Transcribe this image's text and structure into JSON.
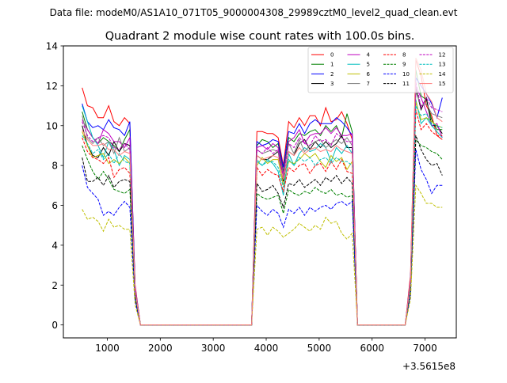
{
  "chart_data": {
    "type": "line",
    "suptitle": "Data file: modeM0/AS1A10_071T05_9000004308_29989cztM0_level2_quad_clean.evt",
    "title": "Quadrant 2 module wise count rates with 100.0s bins.",
    "xlabel": "",
    "ylabel": "",
    "x_offset_label": "+3.5615e8",
    "xlim": [
      170,
      7590
    ],
    "ylim": [
      -0.65,
      14
    ],
    "xticks": [
      1000,
      2000,
      3000,
      4000,
      5000,
      6000,
      7000
    ],
    "yticks": [
      0,
      2,
      4,
      6,
      8,
      10,
      12,
      14
    ],
    "grid": false,
    "legend": {
      "placement": "top-right",
      "columns": 4
    },
    "x": [
      525,
      625,
      725,
      825,
      925,
      1025,
      1125,
      1225,
      1325,
      1425,
      1525,
      1625,
      3725,
      3825,
      3925,
      4025,
      4125,
      4225,
      4325,
      4425,
      4525,
      4625,
      4725,
      4825,
      4925,
      5025,
      5125,
      5225,
      5325,
      5425,
      5525,
      5625,
      5725,
      6625,
      6725,
      6825,
      6925,
      7025,
      7125,
      7225,
      7325
    ],
    "series": [
      {
        "name": "0",
        "color": "#ff0000",
        "dash": "solid",
        "values": [
          11.9,
          11.0,
          10.9,
          10.4,
          10.4,
          11.0,
          10.2,
          10.0,
          10.4,
          10.1,
          2.0,
          0,
          0,
          9.7,
          9.7,
          9.6,
          9.6,
          9.4,
          8.0,
          10.2,
          9.9,
          10.4,
          10.0,
          10.5,
          10.5,
          10.0,
          10.9,
          10.2,
          10.3,
          10.7,
          10.1,
          9.3,
          0,
          0,
          2.5,
          13.3,
          12.5,
          11.0,
          10.5,
          9.5,
          9.3
        ]
      },
      {
        "name": "1",
        "color": "#008000",
        "dash": "solid",
        "values": [
          10.7,
          9.8,
          9.4,
          9.1,
          9.4,
          9.2,
          9.0,
          8.7,
          9.3,
          9.8,
          1.8,
          0,
          0,
          9.0,
          9.3,
          9.2,
          8.9,
          9.1,
          7.7,
          9.4,
          9.2,
          9.6,
          9.5,
          9.7,
          9.8,
          9.5,
          10.0,
          9.7,
          10.0,
          9.4,
          10.6,
          9.7,
          0,
          0,
          2.2,
          12.8,
          11.5,
          11.3,
          10.3,
          9.8,
          9.8
        ]
      },
      {
        "name": "2",
        "color": "#0000ff",
        "dash": "solid",
        "values": [
          11.1,
          10.2,
          9.9,
          10.0,
          9.8,
          10.3,
          9.9,
          9.8,
          9.5,
          10.2,
          1.9,
          0,
          0,
          9.2,
          9.0,
          9.1,
          9.3,
          9.2,
          7.9,
          9.7,
          9.6,
          10.1,
          9.6,
          10.1,
          10.3,
          10.1,
          10.1,
          10.1,
          10.4,
          10.2,
          9.9,
          9.5,
          0,
          0,
          2.3,
          12.4,
          12.0,
          11.6,
          11.1,
          10.4,
          11.4
        ]
      },
      {
        "name": "3",
        "color": "#000000",
        "dash": "solid",
        "values": [
          10.0,
          9.0,
          8.5,
          8.4,
          8.9,
          8.5,
          9.2,
          8.7,
          9.1,
          9.0,
          1.8,
          0,
          0,
          8.5,
          8.3,
          8.3,
          8.5,
          8.7,
          7.2,
          8.7,
          8.5,
          9.1,
          9.3,
          8.8,
          9.2,
          8.9,
          9.2,
          8.9,
          9.1,
          9.5,
          8.9,
          8.9,
          0,
          0,
          2.0,
          11.9,
          10.8,
          11.4,
          10.0,
          10.0,
          9.6
        ]
      },
      {
        "name": "4",
        "color": "#bf00bf",
        "dash": "solid",
        "values": [
          10.3,
          9.8,
          9.4,
          9.1,
          9.8,
          9.6,
          9.2,
          9.2,
          8.9,
          9.4,
          1.9,
          0,
          0,
          8.9,
          9.0,
          8.8,
          9.1,
          8.9,
          7.6,
          9.2,
          9.4,
          9.8,
          9.1,
          9.5,
          9.6,
          9.6,
          9.9,
          9.6,
          9.9,
          9.5,
          9.5,
          9.6,
          0,
          0,
          2.2,
          12.0,
          11.4,
          10.7,
          10.0,
          10.1,
          9.4
        ]
      },
      {
        "name": "5",
        "color": "#00bfbf",
        "dash": "solid",
        "values": [
          11.0,
          10.2,
          9.4,
          9.0,
          8.4,
          9.2,
          8.8,
          8.0,
          8.5,
          8.3,
          1.7,
          0,
          0,
          8.2,
          8.0,
          8.3,
          8.1,
          7.7,
          6.5,
          8.6,
          8.0,
          8.6,
          8.9,
          8.7,
          8.8,
          9.1,
          8.9,
          8.2,
          8.9,
          8.6,
          9.0,
          8.6,
          0,
          0,
          2.1,
          11.3,
          10.1,
          10.4,
          10.0,
          9.7,
          9.4
        ]
      },
      {
        "name": "6",
        "color": "#bfbf00",
        "dash": "solid",
        "values": [
          9.7,
          9.0,
          8.4,
          8.5,
          8.6,
          8.1,
          8.3,
          8.1,
          8.4,
          8.1,
          1.7,
          0,
          0,
          8.0,
          8.4,
          8.1,
          8.3,
          8.3,
          7.0,
          8.2,
          8.1,
          8.3,
          8.6,
          8.4,
          8.6,
          8.2,
          7.9,
          8.5,
          8.2,
          8.4,
          7.8,
          8.2,
          0,
          0,
          2.0,
          11.2,
          10.3,
          10.4,
          10.2,
          10.0,
          9.9
        ]
      },
      {
        "name": "7",
        "color": "#808080",
        "dash": "solid",
        "values": [
          10.5,
          9.4,
          9.1,
          9.4,
          9.0,
          9.2,
          8.6,
          9.4,
          8.7,
          8.9,
          1.8,
          0,
          0,
          8.8,
          8.6,
          8.7,
          8.8,
          8.7,
          7.5,
          9.1,
          8.6,
          9.3,
          8.7,
          9.0,
          9.2,
          9.3,
          8.9,
          9.1,
          9.3,
          9.1,
          9.4,
          9.0,
          0,
          0,
          2.1,
          11.7,
          11.0,
          11.1,
          10.6,
          10.5,
          10.4
        ]
      },
      {
        "name": "8",
        "color": "#ff0000",
        "dash": "dashed",
        "values": [
          9.4,
          8.7,
          8.4,
          8.3,
          8.1,
          8.4,
          7.4,
          7.8,
          7.9,
          7.6,
          1.6,
          0,
          0,
          7.9,
          7.5,
          7.8,
          7.6,
          7.5,
          6.7,
          7.9,
          7.7,
          8.0,
          8.1,
          7.6,
          8.0,
          8.1,
          7.7,
          8.2,
          7.8,
          8.3,
          7.7,
          7.6,
          0,
          0,
          2.0,
          10.8,
          9.8,
          10.1,
          9.7,
          9.5,
          9.5
        ]
      },
      {
        "name": "9",
        "color": "#008000",
        "dash": "dashed",
        "values": [
          9.0,
          8.3,
          7.7,
          7.3,
          7.7,
          7.3,
          6.8,
          6.7,
          6.6,
          6.8,
          1.4,
          0,
          0,
          6.6,
          6.4,
          6.3,
          6.4,
          6.5,
          5.6,
          6.8,
          6.6,
          6.5,
          6.7,
          6.6,
          6.9,
          6.7,
          6.6,
          6.8,
          6.5,
          6.6,
          6.4,
          6.5,
          0,
          0,
          1.7,
          9.3,
          9.0,
          8.9,
          8.7,
          8.6,
          8.3
        ]
      },
      {
        "name": "10",
        "color": "#0000ff",
        "dash": "dashed",
        "values": [
          8.0,
          6.9,
          6.6,
          6.3,
          5.5,
          5.7,
          5.5,
          5.9,
          6.2,
          5.9,
          1.2,
          0,
          0,
          6.0,
          5.7,
          5.5,
          5.8,
          5.6,
          4.9,
          5.8,
          5.6,
          5.9,
          5.5,
          5.9,
          5.7,
          5.9,
          6.0,
          5.8,
          6.1,
          6.2,
          6.0,
          6.2,
          0,
          0,
          1.5,
          8.8,
          7.8,
          7.3,
          6.6,
          7.0,
          7.0
        ]
      },
      {
        "name": "11",
        "color": "#000000",
        "dash": "dashed",
        "values": [
          8.4,
          7.2,
          7.2,
          7.4,
          7.0,
          7.5,
          6.9,
          7.2,
          7.3,
          7.2,
          1.5,
          0,
          0,
          7.1,
          6.7,
          6.8,
          7.0,
          6.6,
          5.9,
          7.1,
          7.0,
          7.3,
          6.9,
          7.1,
          7.3,
          7.0,
          7.4,
          7.2,
          7.5,
          7.1,
          7.4,
          7.1,
          0,
          0,
          1.8,
          9.5,
          8.8,
          8.3,
          8.0,
          8.1,
          7.5
        ]
      },
      {
        "name": "12",
        "color": "#bf00bf",
        "dash": "dashed",
        "values": [
          10.2,
          9.5,
          9.2,
          9.4,
          9.5,
          9.4,
          8.9,
          8.8,
          9.1,
          8.8,
          1.8,
          0,
          0,
          8.8,
          8.6,
          8.9,
          8.6,
          8.8,
          7.4,
          9.1,
          8.9,
          9.4,
          9.1,
          9.0,
          9.5,
          9.2,
          9.3,
          9.0,
          9.6,
          9.4,
          9.2,
          9.2,
          0,
          0,
          2.2,
          12.2,
          10.9,
          11.4,
          10.9,
          10.8,
          10.7
        ]
      },
      {
        "name": "13",
        "color": "#00bfbf",
        "dash": "dashed",
        "values": [
          9.5,
          9.1,
          8.6,
          8.8,
          8.3,
          8.6,
          8.1,
          8.6,
          8.2,
          8.1,
          1.7,
          0,
          0,
          8.3,
          8.0,
          8.2,
          8.2,
          7.9,
          6.9,
          8.3,
          8.0,
          8.4,
          8.2,
          8.4,
          8.0,
          8.3,
          8.4,
          8.1,
          8.4,
          8.2,
          8.2,
          8.0,
          0,
          0,
          2.0,
          11.0,
          10.5,
          10.6,
          10.1,
          10.0,
          9.9
        ]
      },
      {
        "name": "14",
        "color": "#bfbf00",
        "dash": "dashed",
        "values": [
          5.8,
          5.3,
          5.4,
          5.2,
          4.7,
          5.3,
          4.9,
          5.0,
          4.8,
          4.8,
          1.0,
          0,
          0,
          4.8,
          4.9,
          4.5,
          4.9,
          4.7,
          4.4,
          4.6,
          4.8,
          5.1,
          4.9,
          4.7,
          5.0,
          4.8,
          5.4,
          5.1,
          5.2,
          4.6,
          4.3,
          4.6,
          0,
          0,
          1.3,
          7.0,
          6.6,
          6.1,
          6.1,
          5.9,
          5.9
        ]
      },
      {
        "name": "15",
        "color": "#ff7f7f",
        "dash": "solid",
        "values": [
          9.8,
          9.3,
          9.0,
          9.0,
          9.1,
          8.8,
          8.8,
          8.5,
          8.7,
          8.6,
          1.7,
          0,
          0,
          8.5,
          8.3,
          8.4,
          8.5,
          8.4,
          7.3,
          8.7,
          8.5,
          8.9,
          8.6,
          8.8,
          8.9,
          8.7,
          8.8,
          8.7,
          9.0,
          8.8,
          8.7,
          8.6,
          0,
          0,
          2.2,
          13.4,
          12.8,
          11.6,
          11.2,
          10.4,
          10.2
        ]
      }
    ]
  }
}
